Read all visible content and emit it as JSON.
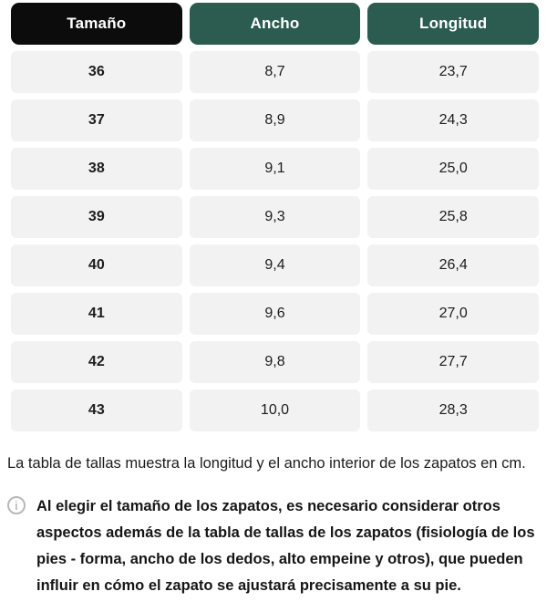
{
  "colors": {
    "header_size_bg": "#0c0c0c",
    "header_measure_bg": "#2b5c4f",
    "cell_bg": "#f3f2f2",
    "header_text": "#ffffff",
    "body_text": "#1c1c1c",
    "info_icon_gray": "#9c9c9c"
  },
  "table": {
    "headers": [
      {
        "label": "Tamaño"
      },
      {
        "label": "Ancho"
      },
      {
        "label": "Longitud"
      }
    ],
    "rows": [
      {
        "size": "36",
        "width": "8,7",
        "length": "23,7"
      },
      {
        "size": "37",
        "width": "8,9",
        "length": "24,3"
      },
      {
        "size": "38",
        "width": "9,1",
        "length": "25,0"
      },
      {
        "size": "39",
        "width": "9,3",
        "length": "25,8"
      },
      {
        "size": "40",
        "width": "9,4",
        "length": "26,4"
      },
      {
        "size": "41",
        "width": "9,6",
        "length": "27,0"
      },
      {
        "size": "42",
        "width": "9,8",
        "length": "27,7"
      },
      {
        "size": "43",
        "width": "10,0",
        "length": "28,3"
      }
    ]
  },
  "description": "La tabla de tallas muestra la longitud y el ancho interior de los zapatos en cm.",
  "note": {
    "icon": "i",
    "text": "Al elegir el tamaño de los zapatos, es necesario considerar otros aspectos además de la tabla de tallas de los zapatos (fisiología de los pies - forma, ancho de los dedos, alto empeine y otros), que pueden influir en cómo el zapato se ajustará precisamente a su pie."
  }
}
